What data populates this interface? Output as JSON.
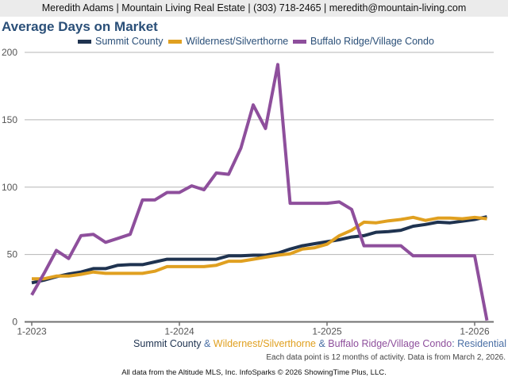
{
  "header": {
    "contact_line": "Meredith Adams | Mountain Living Real Estate | (303) 718-2465 | meredith@mountain-living.com"
  },
  "chart_data": {
    "type": "line",
    "title": "Average Days on Market",
    "xlabel": "",
    "ylabel": "",
    "ylim": [
      0,
      200
    ],
    "yticks": [
      0,
      50,
      100,
      150,
      200
    ],
    "x_tick_labels": [
      "1-2023",
      "1-2024",
      "1-2025",
      "1-2026"
    ],
    "x_tick_months_index": [
      0,
      12,
      24,
      36
    ],
    "grid": true,
    "legend_position": "top-center",
    "x": [
      "1-2023",
      "2-2023",
      "3-2023",
      "4-2023",
      "5-2023",
      "6-2023",
      "7-2023",
      "8-2023",
      "9-2023",
      "10-2023",
      "11-2023",
      "12-2023",
      "1-2024",
      "2-2024",
      "3-2024",
      "4-2024",
      "5-2024",
      "6-2024",
      "7-2024",
      "8-2024",
      "9-2024",
      "10-2024",
      "11-2024",
      "12-2024",
      "1-2025",
      "2-2025",
      "3-2025",
      "4-2025",
      "5-2025",
      "6-2025",
      "7-2025",
      "8-2025",
      "9-2025",
      "10-2025",
      "11-2025",
      "12-2025",
      "1-2026",
      "2-2026"
    ],
    "series": [
      {
        "name": "Summit County",
        "color": "#1f3350",
        "values": [
          29,
          31,
          33.5,
          35.5,
          37,
          39.5,
          39.5,
          42,
          42.5,
          42.5,
          44.5,
          46.5,
          46.5,
          46.5,
          46.5,
          46.5,
          49,
          49,
          49.5,
          49.5,
          51,
          54,
          56.5,
          58,
          59.5,
          61,
          63,
          64,
          66.5,
          67,
          68,
          71,
          72.3,
          74,
          73.5,
          74.7,
          76,
          78
        ]
      },
      {
        "name": "Wildernest/Silverthorne",
        "color": "#e0a020",
        "values": [
          32,
          32,
          34,
          34,
          35.3,
          37,
          36,
          36,
          36,
          36,
          37.6,
          41,
          41,
          41,
          41,
          42,
          45,
          45,
          46.5,
          48,
          49.5,
          50.5,
          54,
          55,
          57.6,
          64,
          68,
          74,
          73.5,
          75,
          76,
          77.6,
          75.3,
          77,
          77,
          76.5,
          77.6,
          76.5
        ]
      },
      {
        "name": "Buffalo Ridge/Village Condo",
        "color": "#8e4f9c",
        "values": [
          20,
          36,
          53,
          47,
          64,
          65,
          59,
          62,
          65,
          90.5,
          90.5,
          96,
          96,
          101,
          98,
          110.5,
          109.5,
          129,
          161,
          143.5,
          191,
          88,
          88,
          88,
          88,
          89,
          83.5,
          56.5,
          56.5,
          56.5,
          56.5,
          49,
          49,
          49,
          49,
          49,
          49,
          1
        ]
      }
    ],
    "footer_subtitle": {
      "parts": [
        {
          "text": "Summit County",
          "color": "#1f3350"
        },
        {
          "text": " & ",
          "color": "#4a6fa5"
        },
        {
          "text": "Wildernest/Silverthorne",
          "color": "#e0a020"
        },
        {
          "text": " & ",
          "color": "#4a6fa5"
        },
        {
          "text": "Buffalo Ridge/Village Condo",
          "color": "#8e4f9c"
        },
        {
          "text": ": Residential",
          "color": "#4a6fa5"
        }
      ]
    },
    "note": "Each data point is 12 months of activity. Data is from March 2, 2026."
  },
  "footer": {
    "credit": "All data from the Altitude MLS, Inc. InfoSparks © 2026 ShowingTime Plus, LLC."
  }
}
